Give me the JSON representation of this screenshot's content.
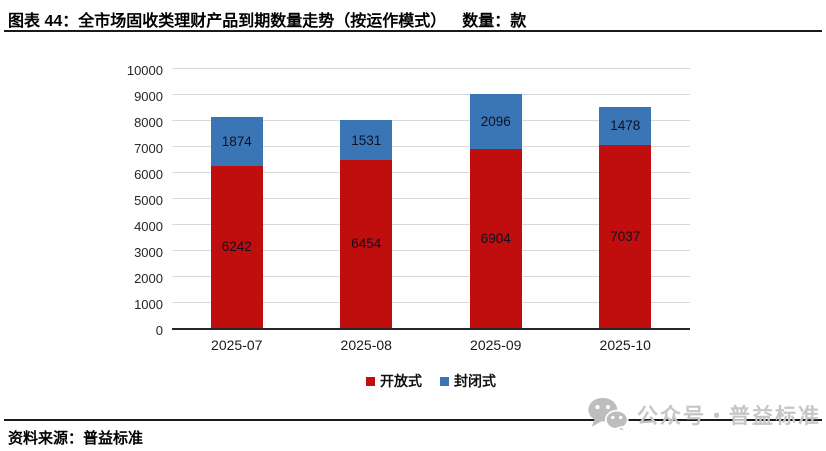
{
  "header": {
    "title": "图表 44：全市场固收类理财产品到期数量走势（按运作模式）",
    "unit": "数量：款"
  },
  "footer": {
    "source": "资料来源：普益标准"
  },
  "watermark": {
    "icon": "wechat-icon",
    "text": "公众号・普益标准"
  },
  "colors": {
    "series_open": "#c00d0d",
    "series_closed": "#3a76b6",
    "gridline": "#d9d9d9",
    "axis_line": "#262626",
    "data_label": "#101020",
    "watermark_gray": "#c0c0c0"
  },
  "chart_data": {
    "type": "bar",
    "stacked": true,
    "title": "全市场固收类理财产品到期数量走势（按运作模式）",
    "xlabel": "",
    "ylabel": "",
    "unit": "款",
    "categories": [
      "2025-07",
      "2025-08",
      "2025-09",
      "2025-10"
    ],
    "series": [
      {
        "name": "开放式",
        "color": "#c00d0d",
        "values": [
          6242,
          6454,
          6904,
          7037
        ]
      },
      {
        "name": "封闭式",
        "color": "#3a76b6",
        "values": [
          1874,
          1531,
          2096,
          1478
        ]
      }
    ],
    "totals": [
      8116,
      7985,
      9000,
      8515
    ],
    "ylim": [
      0,
      10000
    ],
    "ytick_step": 1000,
    "grid": true,
    "legend_position": "bottom"
  }
}
